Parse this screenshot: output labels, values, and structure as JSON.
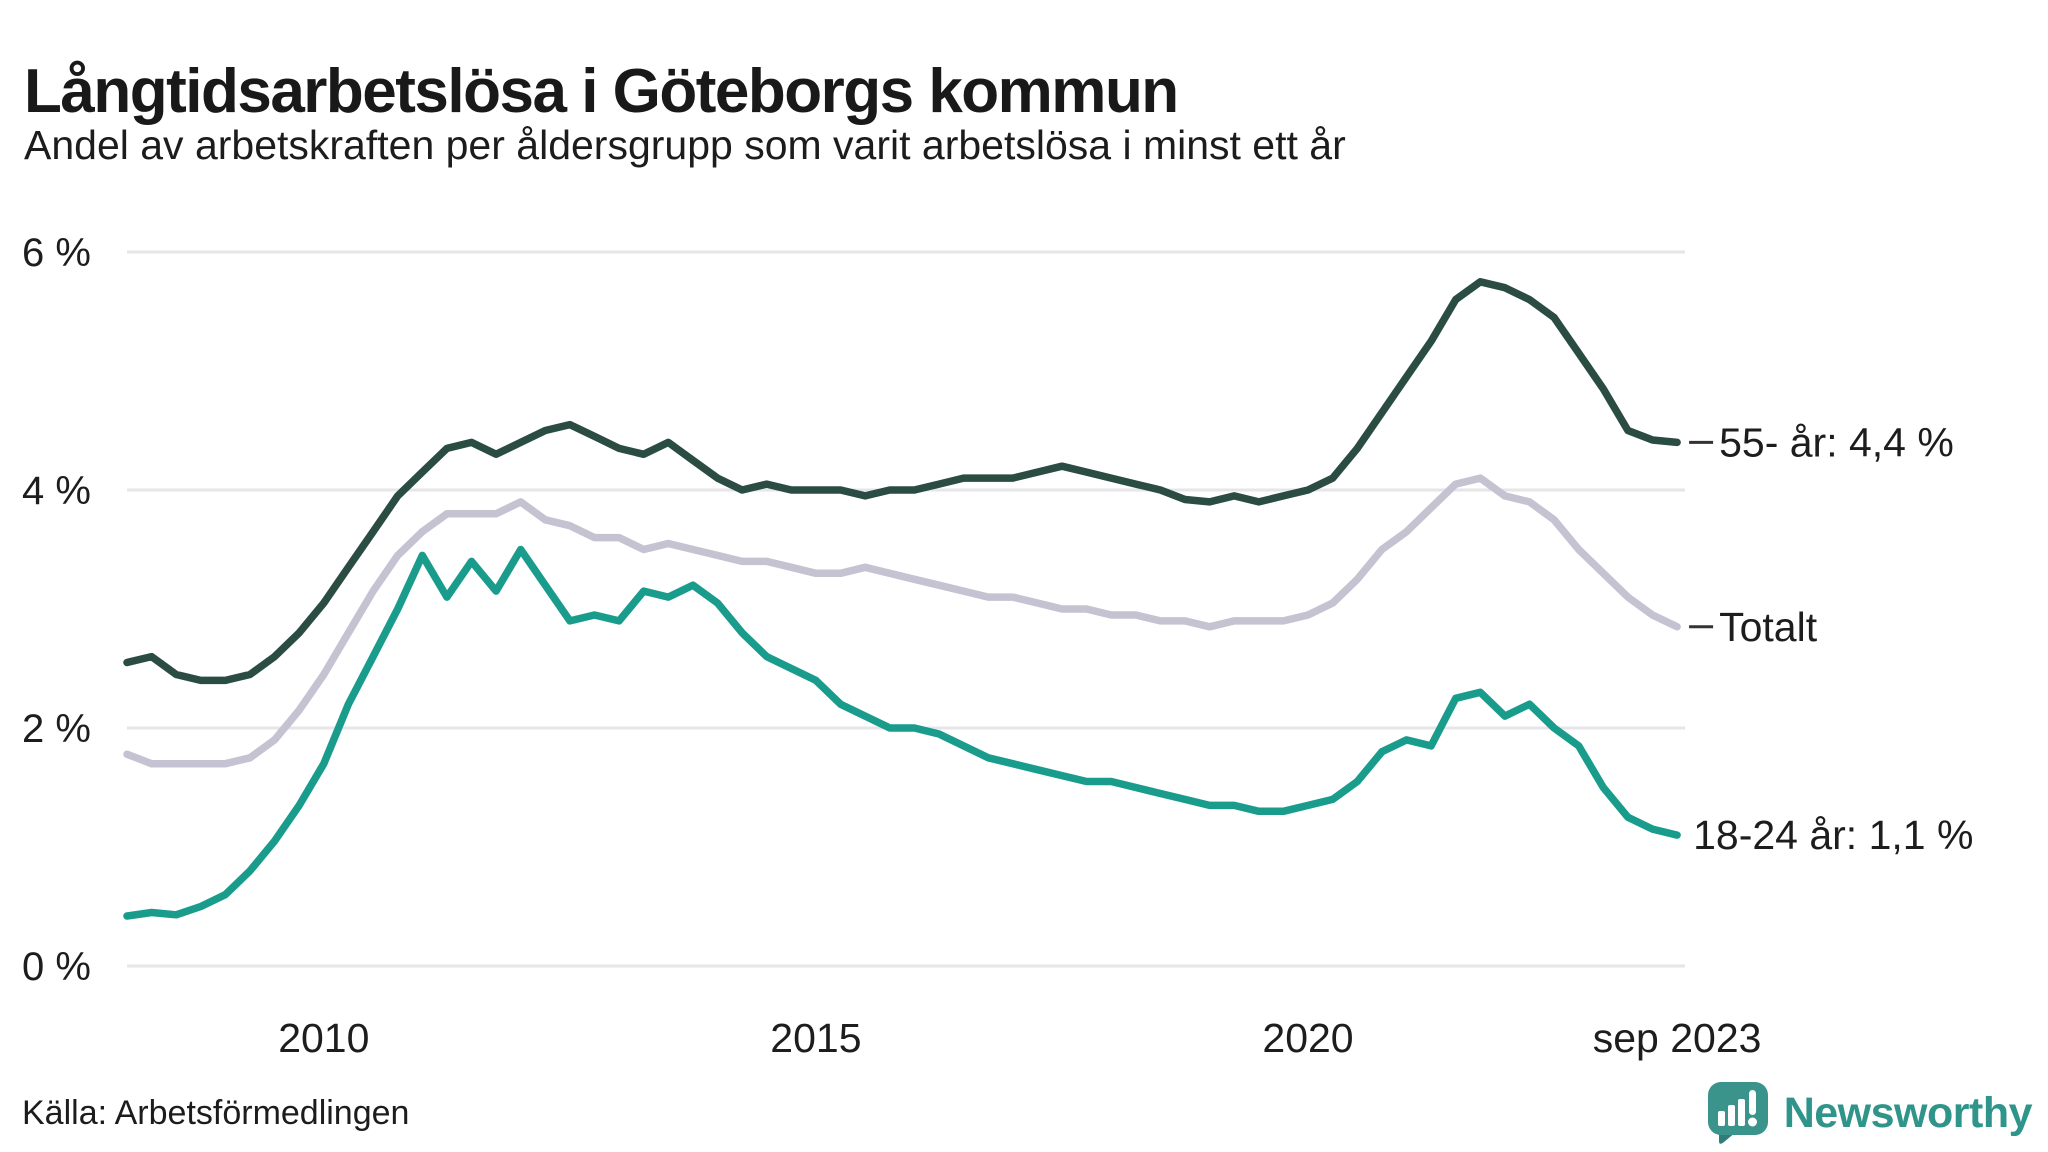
{
  "title": "Långtidsarbetslösa i Göteborgs kommun",
  "subtitle": "Andel av arbetskraften per åldersgrupp som varit arbetslösa i minst ett år",
  "source": "Källa: Arbetsförmedlingen",
  "branding": {
    "name": "Newsworthy",
    "color": "#2f948a",
    "icon": "speech-bubble-bar-chart-icon"
  },
  "colors": {
    "grid": "#e6e5e8",
    "text": "#1d1d1d",
    "connector": "#333333",
    "series_55": "#2a4c42",
    "series_total": "#c5c2d1",
    "series_18_24": "#1a9c8c"
  },
  "chart_data": {
    "type": "line",
    "title": "Långtidsarbetslösa i Göteborgs kommun",
    "subtitle": "Andel av arbetskraften per åldersgrupp som varit arbetslösa i minst ett år",
    "grid": true,
    "legend_position": "end-of-line-labels-right",
    "x_axis": {
      "range": [
        2008.0,
        2023.83
      ],
      "ticks": [
        {
          "value": 2010,
          "label": "2010"
        },
        {
          "value": 2015,
          "label": "2015"
        },
        {
          "value": 2020,
          "label": "2020"
        },
        {
          "value": 2023.75,
          "label": "sep 2023"
        }
      ]
    },
    "y_axis": {
      "range": [
        0,
        6
      ],
      "unit": "%",
      "ticks": [
        {
          "value": 0,
          "label": "0 %"
        },
        {
          "value": 2,
          "label": "2 %"
        },
        {
          "value": 4,
          "label": "4 %"
        },
        {
          "value": 6,
          "label": "6 %"
        }
      ]
    },
    "x": [
      2008.0,
      2008.25,
      2008.5,
      2008.75,
      2009.0,
      2009.25,
      2009.5,
      2009.75,
      2010.0,
      2010.25,
      2010.5,
      2010.75,
      2011.0,
      2011.25,
      2011.5,
      2011.75,
      2012.0,
      2012.25,
      2012.5,
      2012.75,
      2013.0,
      2013.25,
      2013.5,
      2013.75,
      2014.0,
      2014.25,
      2014.5,
      2014.75,
      2015.0,
      2015.25,
      2015.5,
      2015.75,
      2016.0,
      2016.25,
      2016.5,
      2016.75,
      2017.0,
      2017.25,
      2017.5,
      2017.75,
      2018.0,
      2018.25,
      2018.5,
      2018.75,
      2019.0,
      2019.25,
      2019.5,
      2019.75,
      2020.0,
      2020.25,
      2020.5,
      2020.75,
      2021.0,
      2021.25,
      2021.5,
      2021.75,
      2022.0,
      2022.25,
      2022.5,
      2022.75,
      2023.0,
      2023.25,
      2023.5,
      2023.75
    ],
    "series": [
      {
        "name": "55- år",
        "label": "55- år: 4,4 %",
        "last_value_text": "4,4 %",
        "color": "#2a4c42",
        "connector": true,
        "values": [
          2.55,
          2.6,
          2.45,
          2.4,
          2.4,
          2.45,
          2.6,
          2.8,
          3.05,
          3.35,
          3.65,
          3.95,
          4.15,
          4.35,
          4.4,
          4.3,
          4.4,
          4.5,
          4.55,
          4.45,
          4.35,
          4.3,
          4.4,
          4.25,
          4.1,
          4.0,
          4.05,
          4.0,
          4.0,
          4.0,
          3.95,
          4.0,
          4.0,
          4.05,
          4.1,
          4.1,
          4.1,
          4.15,
          4.2,
          4.15,
          4.1,
          4.05,
          4.0,
          3.92,
          3.9,
          3.95,
          3.9,
          3.95,
          4.0,
          4.1,
          4.35,
          4.65,
          4.95,
          5.25,
          5.6,
          5.75,
          5.7,
          5.6,
          5.45,
          5.15,
          4.85,
          4.5,
          4.42,
          4.4
        ]
      },
      {
        "name": "Totalt",
        "label": "Totalt",
        "last_value_text": "",
        "color": "#c5c2d1",
        "connector": true,
        "values": [
          1.78,
          1.7,
          1.7,
          1.7,
          1.7,
          1.75,
          1.9,
          2.15,
          2.45,
          2.8,
          3.15,
          3.45,
          3.65,
          3.8,
          3.8,
          3.8,
          3.9,
          3.75,
          3.7,
          3.6,
          3.6,
          3.5,
          3.55,
          3.5,
          3.45,
          3.4,
          3.4,
          3.35,
          3.3,
          3.3,
          3.35,
          3.3,
          3.25,
          3.2,
          3.15,
          3.1,
          3.1,
          3.05,
          3.0,
          3.0,
          2.95,
          2.95,
          2.9,
          2.9,
          2.85,
          2.9,
          2.9,
          2.9,
          2.95,
          3.05,
          3.25,
          3.5,
          3.65,
          3.85,
          4.05,
          4.1,
          3.95,
          3.9,
          3.75,
          3.5,
          3.3,
          3.1,
          2.95,
          2.85
        ]
      },
      {
        "name": "18-24 år",
        "label": "18-24 år: 1,1 %",
        "last_value_text": "1,1 %",
        "color": "#1a9c8c",
        "connector": false,
        "values": [
          0.42,
          0.45,
          0.43,
          0.5,
          0.6,
          0.8,
          1.05,
          1.35,
          1.7,
          2.2,
          2.6,
          3.0,
          3.45,
          3.1,
          3.4,
          3.15,
          3.5,
          3.2,
          2.9,
          2.95,
          2.9,
          3.15,
          3.1,
          3.2,
          3.05,
          2.8,
          2.6,
          2.5,
          2.4,
          2.2,
          2.1,
          2.0,
          2.0,
          1.95,
          1.85,
          1.75,
          1.7,
          1.65,
          1.6,
          1.55,
          1.55,
          1.5,
          1.45,
          1.4,
          1.35,
          1.35,
          1.3,
          1.3,
          1.35,
          1.4,
          1.55,
          1.8,
          1.9,
          1.85,
          2.25,
          2.3,
          2.1,
          2.2,
          2.0,
          1.85,
          1.5,
          1.25,
          1.15,
          1.1
        ]
      }
    ]
  }
}
